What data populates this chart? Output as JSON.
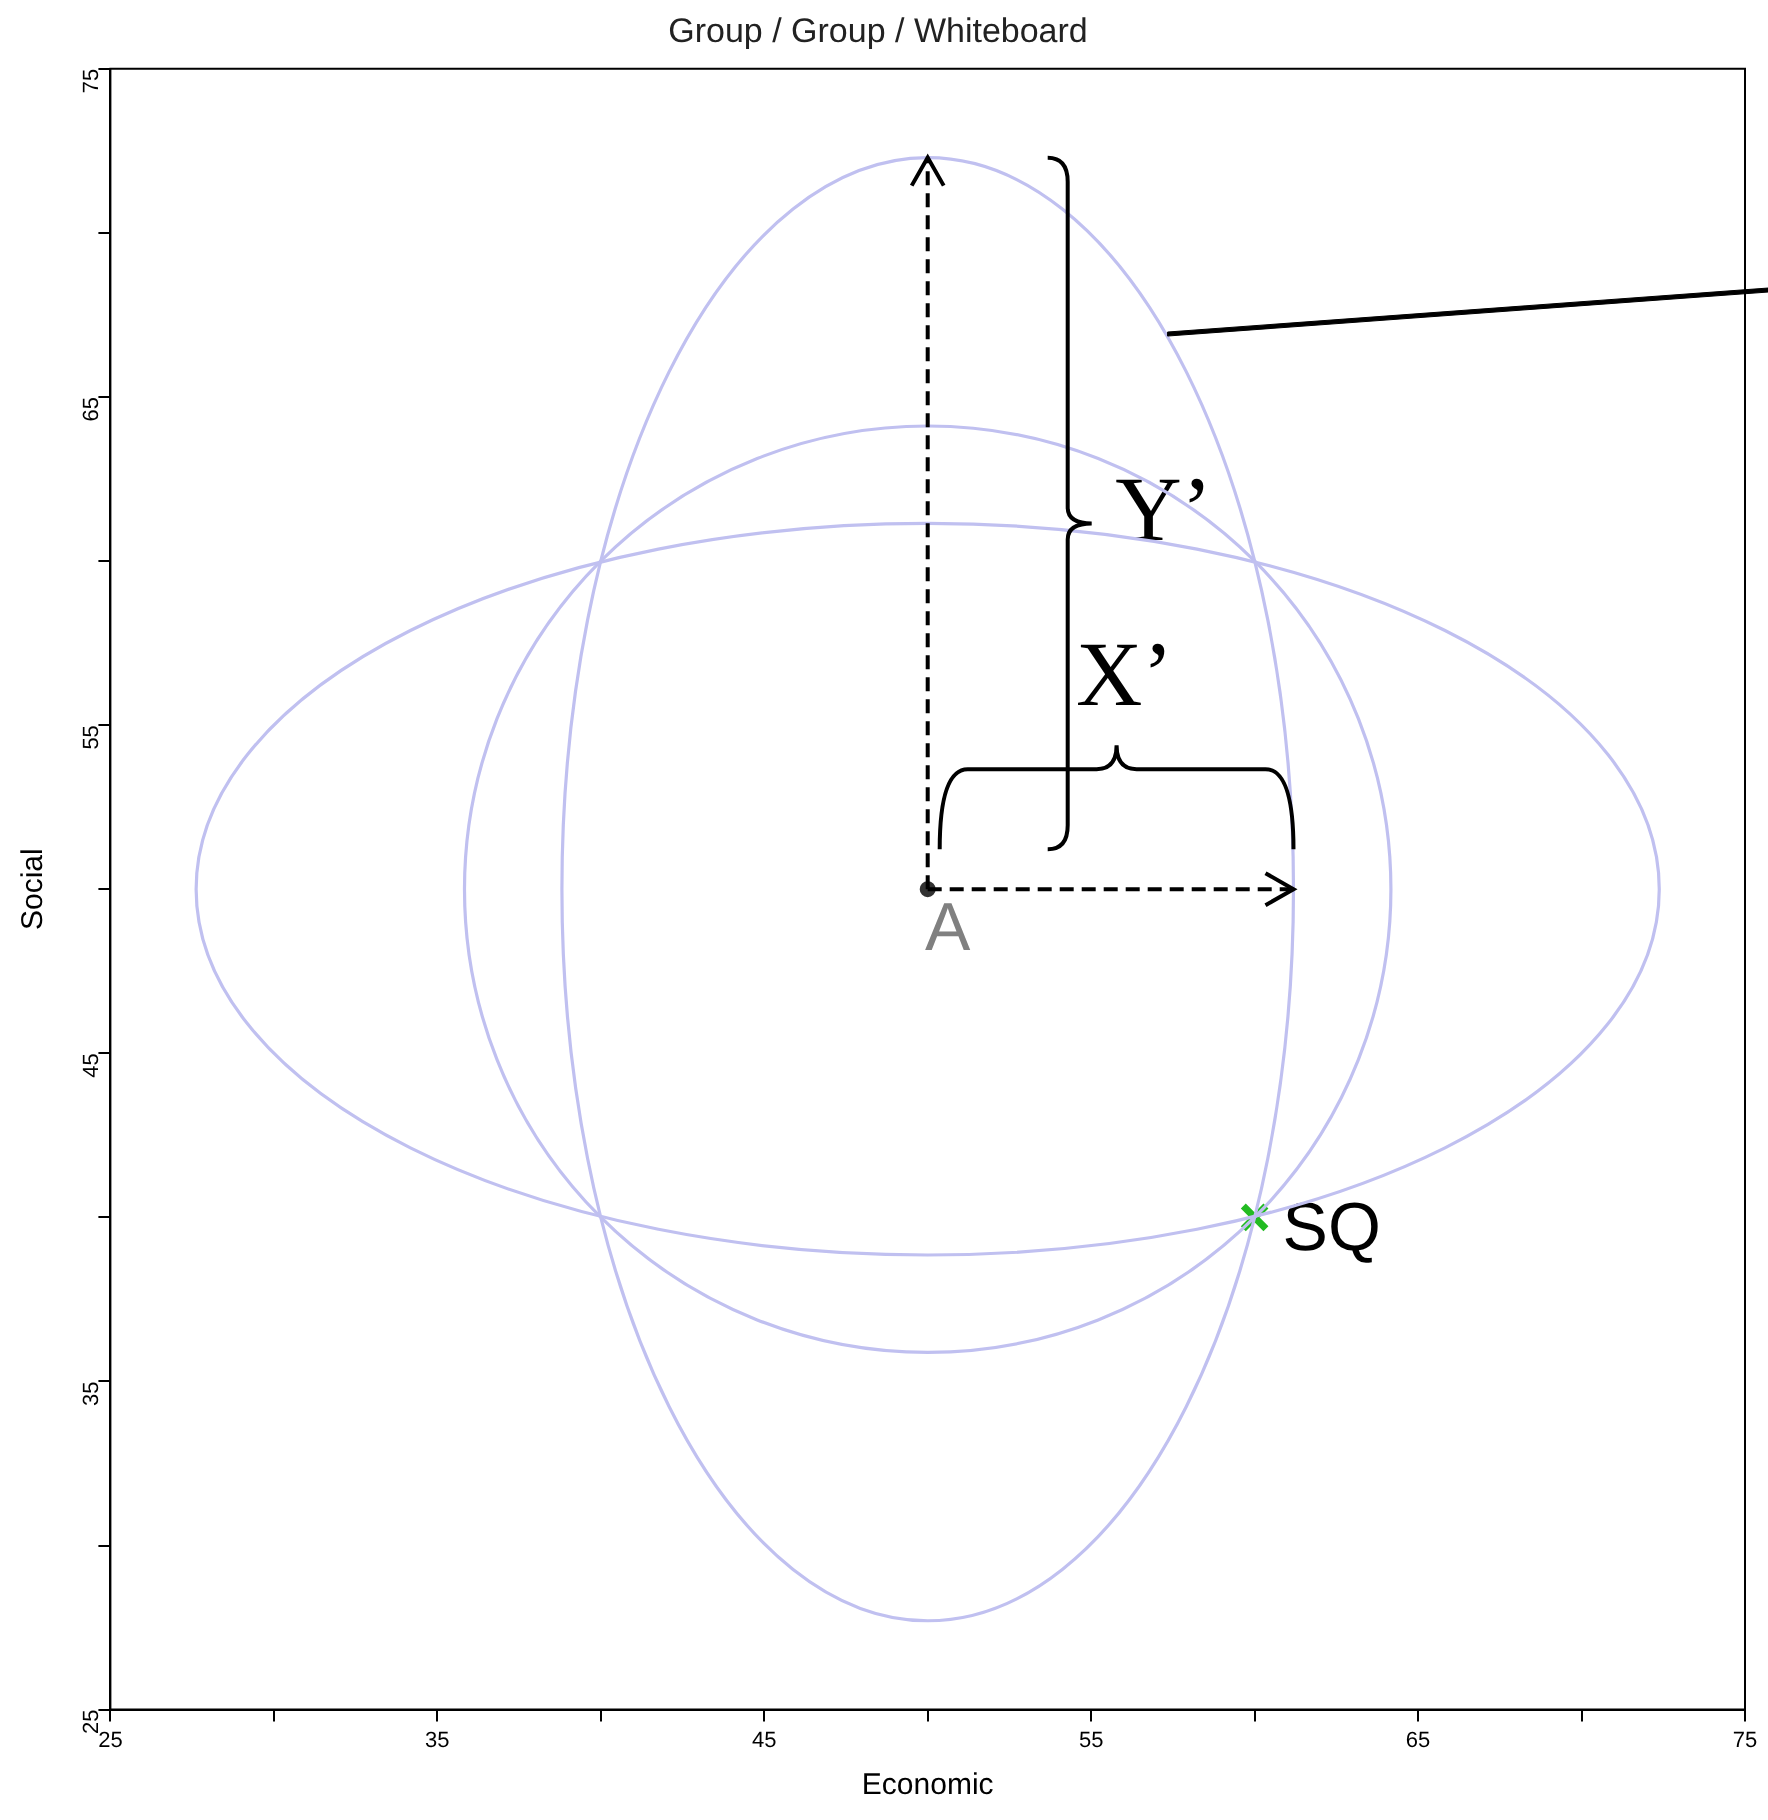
{
  "chart_data": {
    "type": "scatter",
    "title": "Group / Group / Whiteboard",
    "xlabel": "Economic",
    "ylabel": "Social",
    "xlim": [
      25,
      75
    ],
    "ylim": [
      25,
      75
    ],
    "xticks": [
      25,
      {
        "value": 30,
        "label": null
      },
      35,
      {
        "value": 40,
        "label": null
      },
      45,
      {
        "value": 50,
        "label": null
      },
      55,
      {
        "value": 60,
        "label": null
      },
      65,
      {
        "value": 70,
        "label": null
      },
      75
    ],
    "yticks": [
      25,
      {
        "value": 30,
        "label": null
      },
      35,
      {
        "value": 40,
        "label": null
      },
      45,
      {
        "value": 50,
        "label": null
      },
      55,
      {
        "value": 60,
        "label": null
      },
      65,
      {
        "value": 70,
        "label": null
      },
      75
    ],
    "grid": false,
    "legend": false,
    "series": [
      {
        "name": "A",
        "color": "#333333",
        "marker": "circle",
        "x": [
          50
        ],
        "values": [
          50
        ]
      },
      {
        "name": "SQ",
        "color": "#22bb22",
        "marker": "cross",
        "x": [
          60
        ],
        "values": [
          40
        ]
      }
    ],
    "annotations": [
      "Y’",
      "X’"
    ]
  }
}
